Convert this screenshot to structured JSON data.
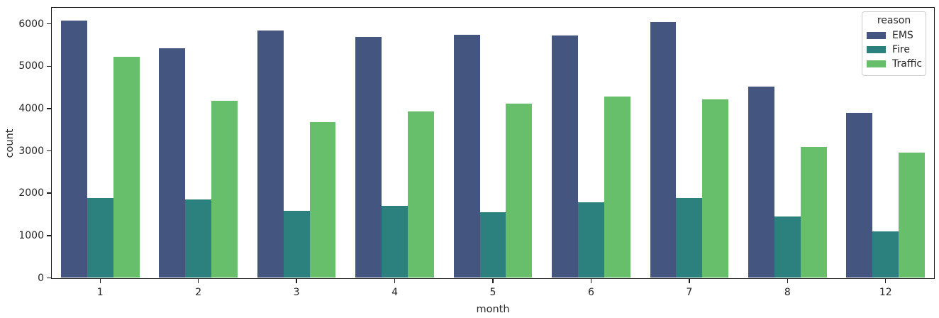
{
  "chart_data": {
    "type": "bar",
    "title": "",
    "xlabel": "month",
    "ylabel": "count",
    "categories": [
      "1",
      "2",
      "3",
      "4",
      "5",
      "6",
      "7",
      "8",
      "12"
    ],
    "series": [
      {
        "name": "EMS",
        "color": "#445680",
        "values": [
          6080,
          5430,
          5840,
          5690,
          5740,
          5720,
          6040,
          4510,
          3900
        ]
      },
      {
        "name": "Fire",
        "color": "#2c817f",
        "values": [
          1890,
          1850,
          1580,
          1700,
          1550,
          1780,
          1890,
          1450,
          1100
        ]
      },
      {
        "name": "Traffic",
        "color": "#67bf6b",
        "values": [
          5230,
          4180,
          3680,
          3930,
          4110,
          4280,
          4210,
          3100,
          2960
        ]
      }
    ],
    "ylim": [
      0,
      6370
    ],
    "yticks": [
      0,
      1000,
      2000,
      3000,
      4000,
      5000,
      6000
    ],
    "grid": false,
    "legend": {
      "title": "reason",
      "position": "upper right"
    },
    "bar_group_width_fraction": 0.8,
    "axis_color": "#1a1a1a"
  }
}
